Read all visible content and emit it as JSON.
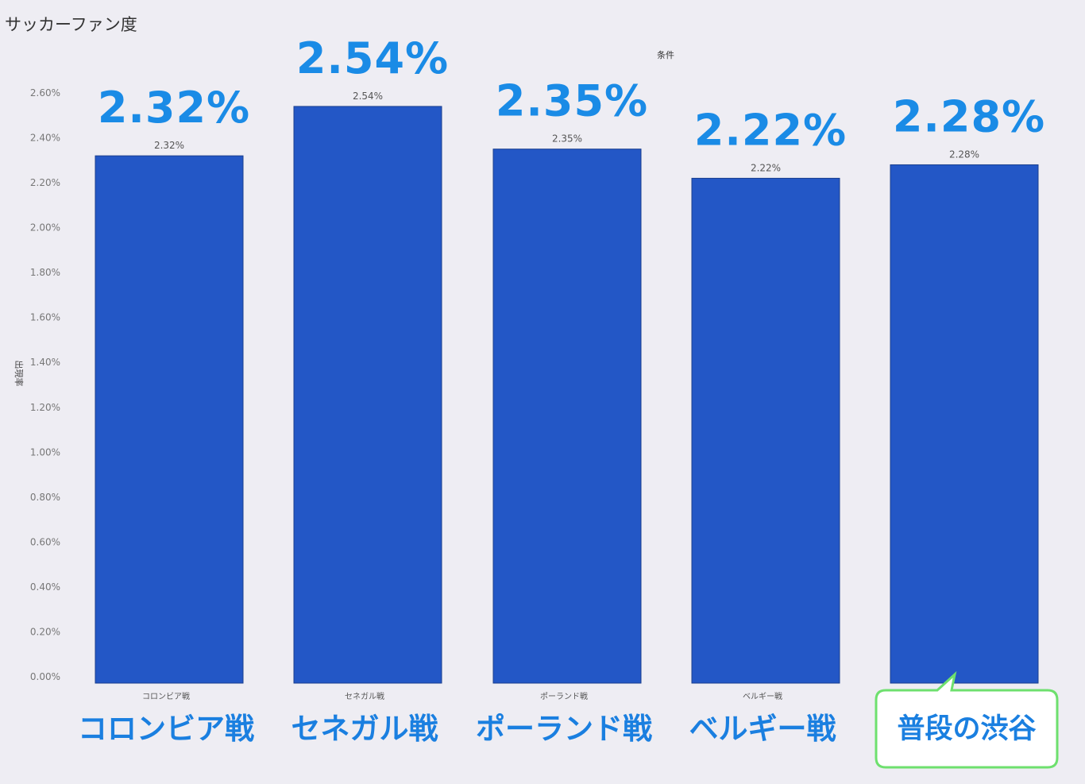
{
  "colors": {
    "bar": "#2357c6",
    "highlight_text": "#1a8be6",
    "callout_border": "#6ee06e"
  },
  "chart_data": {
    "type": "bar",
    "title": "サッカーファン度",
    "legend_title": "条件",
    "ylabel": "出現率",
    "ylim": [
      0,
      2.6
    ],
    "yticks": [
      "0.00%",
      "0.20%",
      "0.40%",
      "0.60%",
      "0.80%",
      "1.00%",
      "1.20%",
      "1.40%",
      "1.60%",
      "1.80%",
      "2.00%",
      "2.20%",
      "2.40%",
      "2.60%"
    ],
    "categories": [
      "コロンビア戦",
      "セネガル戦",
      "ポーランド戦",
      "ベルギー戦",
      "普段の渋谷"
    ],
    "values": [
      2.32,
      2.54,
      2.35,
      2.22,
      2.28
    ],
    "value_labels": [
      "2.32%",
      "2.54%",
      "2.35%",
      "2.22%",
      "2.28%"
    ],
    "small_category_labels": [
      "コロンビア戦",
      "セネガル戦",
      "ポーランド戦",
      "ベルギー戦",
      ""
    ],
    "grid": false,
    "callout_category": "普段の渋谷"
  }
}
